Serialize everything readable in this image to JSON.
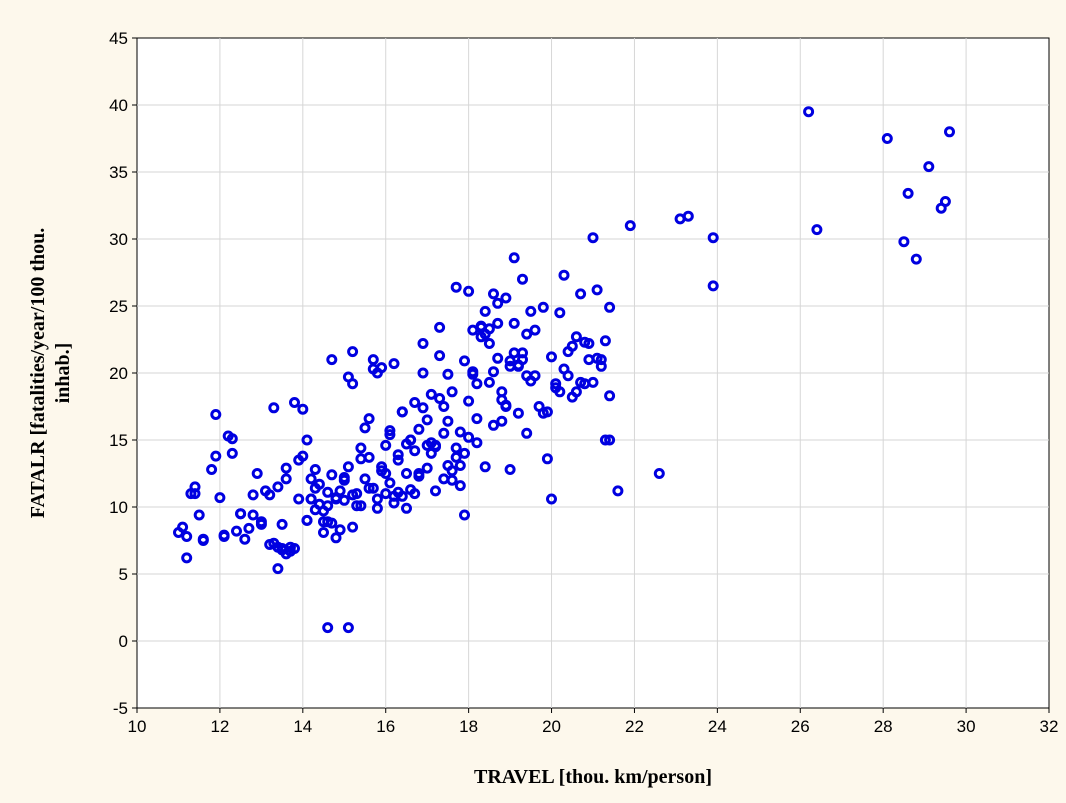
{
  "chart_data": {
    "type": "scatter",
    "title": "",
    "xlabel": "TRAVEL [thou. km/person]",
    "ylabel_lines": [
      "FATALR [fatalities/year/100 thou.",
      "inhab.]"
    ],
    "xlim": [
      10,
      32
    ],
    "ylim": [
      -5,
      45
    ],
    "xticks": [
      10,
      12,
      14,
      16,
      18,
      20,
      22,
      24,
      26,
      28,
      30,
      32
    ],
    "yticks": [
      -5,
      0,
      5,
      10,
      15,
      20,
      25,
      30,
      35,
      40,
      45
    ],
    "grid": true,
    "marker": "open-circle",
    "marker_color": "#0000e0",
    "series": [
      {
        "x": [
          11.0,
          11.1,
          11.2,
          11.3,
          11.4,
          11.5,
          11.6,
          11.8,
          11.9,
          12.0,
          12.1,
          12.2,
          12.3,
          12.4,
          12.5,
          12.6,
          12.7,
          12.8,
          12.9,
          13.0,
          13.1,
          13.2,
          13.3,
          13.4,
          13.5,
          13.6,
          13.7,
          13.8,
          13.9,
          14.0,
          14.1,
          14.2,
          14.3,
          14.4,
          14.5,
          14.6,
          14.7,
          14.8,
          14.9,
          15.0,
          15.1,
          15.2,
          15.3,
          15.4,
          15.5,
          15.6,
          15.7,
          15.8,
          15.9,
          16.0,
          16.1,
          16.2,
          16.3,
          16.4,
          16.5,
          16.6,
          16.7,
          16.8,
          16.9,
          17.0,
          17.1,
          17.2,
          17.3,
          17.4,
          17.5,
          17.6,
          17.7,
          17.8,
          17.9,
          18.0,
          18.1,
          18.2,
          18.3,
          18.4,
          18.5,
          18.6,
          18.7,
          18.8,
          18.9,
          19.0,
          19.1,
          19.2,
          19.3,
          19.4,
          19.5,
          19.6,
          19.7,
          19.8,
          19.9,
          20.0,
          20.1,
          20.2,
          20.3,
          20.4,
          20.5,
          20.6,
          20.7,
          20.8,
          20.9,
          21.0,
          21.1,
          21.2,
          21.3,
          21.4,
          11.2,
          11.4,
          11.6,
          11.9,
          12.1,
          12.3,
          12.5,
          12.8,
          13.0,
          13.2,
          13.4,
          13.6,
          13.8,
          14.0,
          14.2,
          14.4,
          14.6,
          14.8,
          15.0,
          15.2,
          15.4,
          15.6,
          15.8,
          16.0,
          16.2,
          16.4,
          16.6,
          16.8,
          17.0,
          17.2,
          17.4,
          17.6,
          17.8,
          18.0,
          18.2,
          18.4,
          18.6,
          18.8,
          19.0,
          19.2,
          19.4,
          19.6,
          19.8,
          20.0,
          20.2,
          20.4,
          20.6,
          20.8,
          21.0,
          21.2,
          21.4,
          13.5,
          13.7,
          14.1,
          14.3,
          14.5,
          14.9,
          15.1,
          15.3,
          15.7,
          15.9,
          16.1,
          16.3,
          16.5,
          16.7,
          16.9,
          17.1,
          17.3,
          17.5,
          17.7,
          17.9,
          18.1,
          18.3,
          18.5,
          18.7,
          18.9,
          19.1,
          19.3,
          19.5,
          19.9,
          20.1,
          20.3,
          20.5,
          20.7,
          20.9,
          21.1,
          21.3,
          15.5,
          15.7,
          15.9,
          16.1,
          16.3,
          16.5,
          16.7,
          16.9,
          17.1,
          17.3,
          17.5,
          17.7,
          17.9,
          18.1,
          18.3,
          18.5,
          18.7,
          18.9,
          19.1,
          19.3,
          14.7,
          15.0,
          15.2,
          15.4,
          15.6,
          15.8,
          16.0,
          16.2,
          16.4,
          16.6,
          16.8,
          17.0,
          17.2,
          17.4,
          17.6,
          17.8,
          18.0,
          18.2,
          18.4,
          18.6,
          18.8,
          19.0,
          19.2,
          19.4,
          14.5,
          14.6,
          14.8,
          15.2,
          14.6,
          15.1,
          13.4,
          13.6,
          13.9,
          14.1,
          14.2,
          14.3,
          13.3,
          13.5,
          14.7,
          21.9,
          22.6,
          21.6,
          21.4,
          23.1,
          23.3,
          23.9,
          23.9,
          26.2,
          26.4,
          28.1,
          28.5,
          28.6,
          28.8,
          29.1,
          29.4,
          29.5,
          29.6
        ],
        "y": [
          8.1,
          8.5,
          6.2,
          11.0,
          11.5,
          9.4,
          7.5,
          12.8,
          16.9,
          10.7,
          7.8,
          15.3,
          14.0,
          8.2,
          9.5,
          7.6,
          8.4,
          10.9,
          12.5,
          8.9,
          11.2,
          7.2,
          17.4,
          5.4,
          8.7,
          12.9,
          6.7,
          17.8,
          10.6,
          17.3,
          9.0,
          10.6,
          12.8,
          10.2,
          8.1,
          11.1,
          21.0,
          10.7,
          8.3,
          12.2,
          13.0,
          21.6,
          11.0,
          10.1,
          12.1,
          13.7,
          11.4,
          20.0,
          12.7,
          14.6,
          11.8,
          20.7,
          13.5,
          17.1,
          9.9,
          15.0,
          17.8,
          12.3,
          20.0,
          16.5,
          18.4,
          14.6,
          21.3,
          15.5,
          13.1,
          18.6,
          14.4,
          15.6,
          9.4,
          17.9,
          20.1,
          16.6,
          23.5,
          22.9,
          19.3,
          25.9,
          21.1,
          18.0,
          25.6,
          20.9,
          23.7,
          17.0,
          27.0,
          15.5,
          19.4,
          19.8,
          17.5,
          24.9,
          13.6,
          21.2,
          19.2,
          24.5,
          27.3,
          19.8,
          18.2,
          22.7,
          25.9,
          22.3,
          22.2,
          30.1,
          26.2,
          21.0,
          22.4,
          24.9,
          7.8,
          11.0,
          7.6,
          13.8,
          7.9,
          15.1,
          9.5,
          9.4,
          8.7,
          10.9,
          7.0,
          12.1,
          6.9,
          13.8,
          10.6,
          11.7,
          8.9,
          10.6,
          12.0,
          10.9,
          13.6,
          16.6,
          9.9,
          12.5,
          10.3,
          17.1,
          15.0,
          12.5,
          14.6,
          11.2,
          17.5,
          12.0,
          11.6,
          15.2,
          14.8,
          13.0,
          16.1,
          18.6,
          12.8,
          20.5,
          19.8,
          23.2,
          17.0,
          10.6,
          18.6,
          21.6,
          18.6,
          19.2,
          19.3,
          20.5,
          18.3,
          6.8,
          7.0,
          9.0,
          11.4,
          9.7,
          11.2,
          19.7,
          10.1,
          20.3,
          13.0,
          15.7,
          11.1,
          14.7,
          14.2,
          17.4,
          14.8,
          23.4,
          19.9,
          13.7,
          20.9,
          23.2,
          23.4,
          22.2,
          23.7,
          17.6,
          21.5,
          21.0,
          24.6,
          17.1,
          18.9,
          20.3,
          22.0,
          19.3,
          21.0,
          21.1,
          15.0,
          15.9,
          21.0,
          20.4,
          15.4,
          13.9,
          12.5,
          11.0,
          22.2,
          14.0,
          18.1,
          16.4,
          26.4,
          14.0,
          19.9,
          22.7,
          23.3,
          25.2,
          17.5,
          28.6,
          21.5,
          12.4,
          10.5,
          19.2,
          14.4,
          11.4,
          10.6,
          11.0,
          10.8,
          10.8,
          11.3,
          15.8,
          12.9,
          14.5,
          12.1,
          12.7,
          13.1,
          26.1,
          19.2,
          24.6,
          20.1,
          16.4,
          20.5,
          20.6,
          22.9,
          8.9,
          10.1,
          7.7,
          8.5,
          1.0,
          1.0,
          11.5,
          6.5,
          13.5,
          15.0,
          12.1,
          9.8,
          7.3,
          6.9,
          8.8,
          31.0,
          12.5,
          11.2,
          15.0,
          31.5,
          31.7,
          30.1,
          26.5,
          39.5,
          30.7,
          37.5,
          29.8,
          33.4,
          28.5,
          35.4,
          32.3,
          32.8,
          38.0
        ]
      }
    ]
  }
}
